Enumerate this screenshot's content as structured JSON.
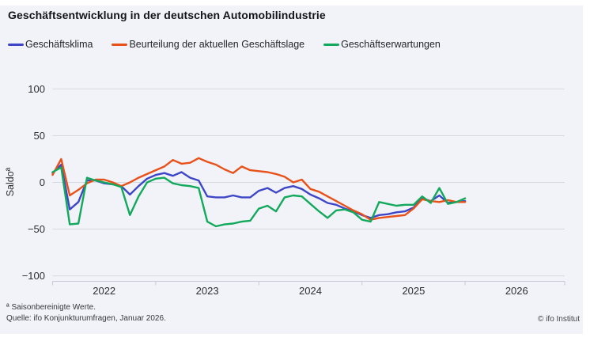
{
  "header": {
    "title": "Geschäftsentwicklung in der deutschen Automobilindustrie"
  },
  "footer": {
    "note1": "ª Saisonbereinigte Werte.",
    "note2": "Quelle: ifo Konjunkturumfragen,  Januar 2026.",
    "copyright": "© ifo Institut"
  },
  "colors": {
    "background": "#f2f3f8",
    "gridline": "#d6d8e1",
    "axis": "#c7cad6",
    "text": "#2d2e33",
    "klima": "#3e46c8",
    "lage": "#e8521a",
    "erwartungen": "#13a95c"
  },
  "chart_data": {
    "type": "line",
    "title": "Geschäftsentwicklung in der deutschen Automobilindustrie",
    "ylabel": "Saldoª",
    "xlabel": "",
    "ylim": [
      -100,
      115
    ],
    "yticks": [
      100,
      50,
      0,
      -50,
      -100
    ],
    "x_tick_labels": [
      "2022",
      "2023",
      "2024",
      "2025",
      "2026"
    ],
    "grid": true,
    "legend_position": "top",
    "x": [
      "2022-01",
      "2022-02",
      "2022-03",
      "2022-04",
      "2022-05",
      "2022-06",
      "2022-07",
      "2022-08",
      "2022-09",
      "2022-10",
      "2022-11",
      "2022-12",
      "2023-01",
      "2023-02",
      "2023-03",
      "2023-04",
      "2023-05",
      "2023-06",
      "2023-07",
      "2023-08",
      "2023-09",
      "2023-10",
      "2023-11",
      "2023-12",
      "2024-01",
      "2024-02",
      "2024-03",
      "2024-04",
      "2024-05",
      "2024-06",
      "2024-07",
      "2024-08",
      "2024-09",
      "2024-10",
      "2024-11",
      "2024-12",
      "2025-01",
      "2025-02",
      "2025-03",
      "2025-04",
      "2025-05",
      "2025-06",
      "2025-07",
      "2025-08",
      "2025-09",
      "2025-10",
      "2025-11",
      "2025-12",
      "2026-01"
    ],
    "series": [
      {
        "name": "Geschäftsklima",
        "color": "#3e46c8",
        "values": [
          10,
          19,
          -29,
          -21,
          2,
          2,
          -1,
          -2,
          -4,
          -13,
          -4,
          4,
          8,
          10,
          7,
          11,
          5,
          2,
          -15,
          -16,
          -16,
          -14,
          -16,
          -16,
          -9,
          -6,
          -11,
          -6,
          -4,
          -7,
          -13,
          -17,
          -22,
          -24,
          -28,
          -31,
          -35,
          -38,
          -35,
          -34,
          -32,
          -31,
          -27,
          -17,
          -20,
          -14,
          -22,
          -21,
          -20
        ]
      },
      {
        "name": "Beurteilung der aktuellen Geschäftslage",
        "color": "#e8521a",
        "values": [
          8,
          25,
          -14,
          -8,
          -1,
          3,
          3,
          0,
          -4,
          0,
          5,
          9,
          13,
          17,
          24,
          20,
          21,
          26,
          22,
          19,
          14,
          10,
          17,
          13,
          12,
          11,
          9,
          6,
          0,
          3,
          -7,
          -10,
          -15,
          -20,
          -25,
          -30,
          -34,
          -40,
          -38,
          -37,
          -36,
          -35,
          -28,
          -18,
          -20,
          -21,
          -19,
          -21,
          -21
        ]
      },
      {
        "name": "Geschäftserwartungen",
        "color": "#13a95c",
        "values": [
          11,
          16,
          -45,
          -44,
          5,
          2,
          0,
          -2,
          -5,
          -35,
          -15,
          0,
          4,
          5,
          -1,
          -3,
          -4,
          -6,
          -42,
          -47,
          -45,
          -44,
          -42,
          -41,
          -28,
          -25,
          -31,
          -16,
          -14,
          -15,
          -23,
          -31,
          -38,
          -30,
          -29,
          -32,
          -40,
          -42,
          -21,
          -23,
          -25,
          -24,
          -24,
          -15,
          -22,
          -6,
          -23,
          -21,
          -17
        ]
      }
    ]
  }
}
